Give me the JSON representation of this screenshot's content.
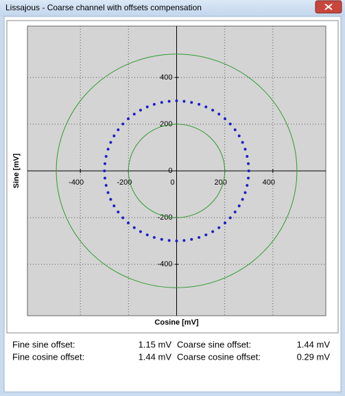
{
  "window": {
    "title": "Lissajous - Coarse channel with offsets compensation"
  },
  "chart_data": {
    "type": "scatter",
    "xlabel": "Cosine [mV]",
    "ylabel": "Sine [mV]",
    "xlim": [
      -620,
      620
    ],
    "ylim": [
      -620,
      620
    ],
    "xticks": [
      -400,
      -200,
      0,
      200,
      400
    ],
    "yticks": [
      -400,
      -200,
      0,
      200,
      400
    ],
    "grid": true,
    "circles": [
      {
        "radius": 500,
        "color": "#2e9a2e"
      },
      {
        "radius": 200,
        "color": "#2e9a2e"
      }
    ],
    "series": [
      {
        "color": "#1e1ec8",
        "x": [
          300,
          298,
          293,
          285,
          274,
          260,
          243,
          223,
          201,
          176,
          150,
          122,
          93,
          62,
          31,
          0,
          -31,
          -62,
          -93,
          -122,
          -150,
          -176,
          -201,
          -223,
          -243,
          -260,
          -274,
          -285,
          -293,
          -298,
          -300,
          -298,
          -293,
          -285,
          -274,
          -260,
          -243,
          -223,
          -201,
          -176,
          -150,
          -122,
          -93,
          -62,
          -31,
          0,
          31,
          62,
          93,
          122,
          150,
          176,
          201,
          223,
          243,
          260,
          274,
          285,
          293,
          298
        ],
        "y": [
          0,
          31,
          62,
          93,
          122,
          150,
          176,
          201,
          223,
          243,
          260,
          274,
          285,
          293,
          298,
          300,
          298,
          293,
          285,
          274,
          260,
          243,
          223,
          201,
          176,
          150,
          122,
          93,
          62,
          31,
          0,
          -31,
          -62,
          -93,
          -122,
          -150,
          -176,
          -201,
          -223,
          -243,
          -260,
          -274,
          -285,
          -293,
          -298,
          -300,
          -298,
          -293,
          -285,
          -274,
          -260,
          -243,
          -223,
          -201,
          -176,
          -150,
          -122,
          -93,
          -62,
          -31
        ]
      }
    ]
  },
  "offsets": [
    {
      "label": "Fine sine offset:",
      "value": "1.15 mV"
    },
    {
      "label": "Coarse sine offset:",
      "value": "1.44 mV"
    },
    {
      "label": "Fine cosine offset:",
      "value": "1.44 mV"
    },
    {
      "label": "Coarse cosine offset:",
      "value": "0.29 mV"
    }
  ]
}
